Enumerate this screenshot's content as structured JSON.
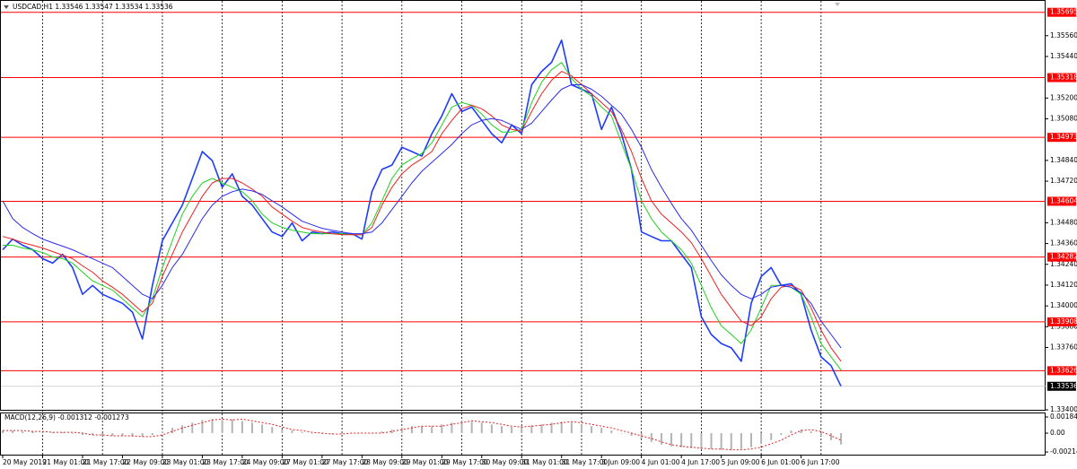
{
  "chart_data": [
    {
      "type": "line",
      "title": "USDCAD,H1  1.33546 1.33547 1.33534 1.33536",
      "categories": [
        "20 May 2019",
        null,
        null,
        null,
        "21 May 01:00",
        null,
        null,
        null,
        "21 May 17:00",
        null,
        null,
        null,
        "22 May 09:00",
        null,
        null,
        null,
        "23 May 01:00",
        null,
        null,
        null,
        "23 May 17:00",
        null,
        null,
        null,
        "24 May 09:00",
        null,
        null,
        null,
        "27 May 01:00",
        null,
        null,
        null,
        "27 May 17:00",
        null,
        null,
        null,
        "28 May 09:00",
        null,
        null,
        null,
        "29 May 01:00",
        null,
        null,
        null,
        "29 May 17:00",
        null,
        null,
        null,
        "30 May 09:00",
        null,
        null,
        null,
        "31 May 01:00",
        null,
        null,
        null,
        "31 May 17:00",
        null,
        null,
        null,
        "3 Jun 09:00",
        null,
        null,
        null,
        "4 Jun 01:00",
        null,
        null,
        null,
        "4 Jun 17:00",
        null,
        null,
        null,
        "5 Jun 09:00",
        null,
        null,
        null,
        "6 Jun 01:00",
        null,
        null,
        null,
        "6 Jun 17:00",
        null,
        null,
        null,
        null
      ],
      "series": [
        {
          "color": "#1e3cff",
          "values": [
            1.34324,
            1.34386,
            1.3435,
            1.34324,
            1.34273,
            1.34247,
            1.34298,
            1.34221,
            1.34067,
            1.34118,
            1.34067,
            1.34041,
            1.34015,
            1.33964,
            1.33809,
            1.34118,
            1.34376,
            1.34479,
            1.34582,
            1.34736,
            1.34891,
            1.34839,
            1.34685,
            1.34762,
            1.34633,
            1.34582,
            1.34504,
            1.34427,
            1.34401,
            1.34479,
            1.34376,
            1.34427,
            1.34417,
            1.34427,
            1.34417,
            1.34417,
            1.34386,
            1.34659,
            1.34788,
            1.34813,
            1.34916,
            1.34891,
            1.34865,
            1.34994,
            1.35097,
            1.35225,
            1.35122,
            1.35148,
            1.35071,
            1.34994,
            1.34942,
            1.35045,
            1.34994,
            1.35277,
            1.35354,
            1.35406,
            1.35534,
            1.35277,
            1.35251,
            1.35225,
            1.35019,
            1.35148,
            1.34994,
            1.34788,
            1.34427,
            1.34401,
            1.34376,
            1.34376,
            1.34298,
            1.34221,
            1.33938,
            1.33835,
            1.33783,
            1.33758,
            1.3368,
            1.34015,
            1.3417,
            1.34221,
            1.34118,
            1.34128,
            1.34067,
            1.33861,
            1.33706,
            1.33655,
            1.33536
          ]
        },
        {
          "color": "#1fd21f",
          "values": [
            1.3435,
            1.3435,
            1.34334,
            1.34324,
            1.34308,
            1.34283,
            1.34273,
            1.34247,
            1.34195,
            1.34144,
            1.34118,
            1.34092,
            1.34041,
            1.33989,
            1.33938,
            1.34041,
            1.34221,
            1.34376,
            1.3453,
            1.34633,
            1.3471,
            1.34736,
            1.3471,
            1.34685,
            1.34659,
            1.34607,
            1.3453,
            1.34479,
            1.34453,
            1.34437,
            1.34427,
            1.34417,
            1.34417,
            1.34417,
            1.34417,
            1.34411,
            1.34411,
            1.34479,
            1.34607,
            1.34736,
            1.34813,
            1.34849,
            1.3488,
            1.34942,
            1.35045,
            1.35148,
            1.35174,
            1.35158,
            1.35107,
            1.35045,
            1.35004,
            1.35004,
            1.35019,
            1.35174,
            1.35292,
            1.35364,
            1.35405,
            1.35313,
            1.35251,
            1.3521,
            1.35148,
            1.35097,
            1.34942,
            1.34788,
            1.34607,
            1.34504,
            1.34427,
            1.34376,
            1.34324,
            1.34247,
            1.34118,
            1.33989,
            1.33886,
            1.33835,
            1.33783,
            1.33861,
            1.33989,
            1.34118,
            1.34118,
            1.34108,
            1.34067,
            1.33938,
            1.33783,
            1.33706,
            1.33629
          ]
        },
        {
          "color": "#f02020",
          "values": [
            1.34401,
            1.34386,
            1.34365,
            1.3435,
            1.34334,
            1.34314,
            1.34293,
            1.34273,
            1.34231,
            1.34195,
            1.34144,
            1.34108,
            1.34067,
            1.34015,
            1.33964,
            1.34015,
            1.3417,
            1.34298,
            1.34427,
            1.3453,
            1.34633,
            1.3471,
            1.34736,
            1.34736,
            1.3471,
            1.34674,
            1.34633,
            1.34571,
            1.3453,
            1.34489,
            1.34453,
            1.34437,
            1.34427,
            1.34417,
            1.34411,
            1.34411,
            1.34411,
            1.34453,
            1.34582,
            1.34685,
            1.34762,
            1.34813,
            1.34849,
            1.34891,
            1.34994,
            1.35071,
            1.35138,
            1.35158,
            1.35138,
            1.35097,
            1.35045,
            1.35019,
            1.35009,
            1.35122,
            1.35225,
            1.35303,
            1.35354,
            1.35328,
            1.35277,
            1.35225,
            1.35174,
            1.35122,
            1.35019,
            1.34891,
            1.34736,
            1.34607,
            1.3453,
            1.34479,
            1.34427,
            1.34365,
            1.34273,
            1.3417,
            1.34067,
            1.33989,
            1.33912,
            1.33886,
            1.33938,
            1.34041,
            1.34108,
            1.34118,
            1.34092,
            1.33989,
            1.33861,
            1.33758,
            1.3368
          ]
        },
        {
          "color": "#2b2bee",
          "values": [
            1.34607,
            1.34504,
            1.34453,
            1.34417,
            1.34386,
            1.34365,
            1.34345,
            1.34324,
            1.34298,
            1.34273,
            1.34247,
            1.34221,
            1.3417,
            1.34118,
            1.34067,
            1.34041,
            1.34118,
            1.34221,
            1.34298,
            1.34401,
            1.34504,
            1.34582,
            1.34633,
            1.34659,
            1.34674,
            1.34664,
            1.34643,
            1.34607,
            1.34571,
            1.3453,
            1.34489,
            1.34468,
            1.34448,
            1.34437,
            1.34427,
            1.34417,
            1.34417,
            1.34427,
            1.34479,
            1.34556,
            1.34633,
            1.3471,
            1.34777,
            1.34829,
            1.3488,
            1.34932,
            1.34994,
            1.35045,
            1.35071,
            1.35081,
            1.35071,
            1.35045,
            1.35019,
            1.35055,
            1.35122,
            1.35189,
            1.35251,
            1.35277,
            1.35277,
            1.35251,
            1.3521,
            1.35158,
            1.35107,
            1.35019,
            1.34916,
            1.34788,
            1.34685,
            1.34592,
            1.34504,
            1.34437,
            1.3435,
            1.34262,
            1.3418,
            1.34118,
            1.34067,
            1.34041,
            1.34067,
            1.34108,
            1.34118,
            1.34108,
            1.34077,
            1.34015,
            1.33912,
            1.33835,
            1.33758
          ]
        }
      ],
      "levels": {
        "color": "#ff0000",
        "values": [
          1.35695,
          1.35318,
          1.34973,
          1.34604,
          1.34282,
          1.33908,
          1.33626
        ]
      },
      "last_price": 1.33536,
      "ylim": [
        1.33395,
        1.35766
      ],
      "yticks": [
        {
          "value": 1.3556,
          "label": "1.35560"
        },
        {
          "value": 1.3544,
          "label": "1.35440"
        },
        {
          "value": 1.352,
          "label": "1.35200"
        },
        {
          "value": 1.3508,
          "label": "1.35080"
        },
        {
          "value": 1.3484,
          "label": "1.34840"
        },
        {
          "value": 1.3472,
          "label": "1.34720"
        },
        {
          "value": 1.3448,
          "label": "1.34480"
        },
        {
          "value": 1.3436,
          "label": "1.34360"
        },
        {
          "value": 1.3424,
          "label": "1.34240"
        },
        {
          "value": 1.3412,
          "label": "1.34120"
        },
        {
          "value": 1.34,
          "label": "1.34000"
        },
        {
          "value": 1.3388,
          "label": "1.33880"
        },
        {
          "value": 1.3376,
          "label": "1.33760"
        },
        {
          "value": 1.334,
          "label": "1.33400"
        }
      ],
      "grid": true
    },
    {
      "type": "macd",
      "title": "MACD(12,26,9) -0.001312 -0.001273",
      "series": [
        {
          "color": "#b4b4b4",
          "values": [
            0.0003,
            0.0003,
            0.0002,
            0.0002,
            0.0001,
            0.0001,
            0.0001,
            0,
            -0.0002,
            -0.0002,
            -0.0003,
            -0.0003,
            -0.0003,
            -0.0004,
            -0.0004,
            -0.0002,
            0.0002,
            0.0006,
            0.0009,
            0.0012,
            0.0015,
            0.0016,
            0.0015,
            0.0016,
            0.0014,
            0.0012,
            0.001,
            0.0007,
            0.0004,
            0.0003,
            0.0001,
            0,
            -0.0001,
            -0.0001,
            0,
            0,
            0,
            0,
            0.0002,
            0.0004,
            0.0006,
            0.0008,
            0.0008,
            0.0008,
            0.001,
            0.0012,
            0.0014,
            0.0013,
            0.0012,
            0.001,
            0.0008,
            0.0007,
            0.0008,
            0.0009,
            0.001,
            0.0012,
            0.0013,
            0.0012,
            0.001,
            0.0008,
            0.0006,
            0.0003,
            0,
            -0.0003,
            -0.0006,
            -0.001,
            -0.0013,
            -0.0015,
            -0.0016,
            -0.0017,
            -0.0018,
            -0.0018,
            -0.0019,
            -0.0019,
            -0.0018,
            -0.0016,
            -0.0012,
            -0.0008,
            -0.0002,
            0.0003,
            0.0004,
            0.0002,
            -0.0003,
            -0.0008,
            -0.0013
          ]
        },
        {
          "color": "#e02020",
          "values": [
            0.0003,
            0.0003,
            0.0003,
            0.0002,
            0.0002,
            0.0001,
            0.0001,
            0.0001,
            0,
            -0.0002,
            -0.0002,
            -0.0003,
            -0.0003,
            -0.0003,
            -0.0004,
            -0.0004,
            -0.0002,
            0.0002,
            0.0006,
            0.0009,
            0.0012,
            0.0015,
            0.0016,
            0.0015,
            0.0016,
            0.0014,
            0.0012,
            0.001,
            0.0007,
            0.0004,
            0.0003,
            0.0001,
            0,
            -0.0001,
            -0.0001,
            0,
            0,
            0,
            0,
            0.0002,
            0.0004,
            0.0006,
            0.0008,
            0.0008,
            0.0008,
            0.001,
            0.0012,
            0.0014,
            0.0013,
            0.0012,
            0.001,
            0.0008,
            0.0007,
            0.0008,
            0.0009,
            0.001,
            0.0012,
            0.0013,
            0.0012,
            0.001,
            0.0008,
            0.0006,
            0.0003,
            0,
            -0.0003,
            -0.0006,
            -0.001,
            -0.0013,
            -0.0015,
            -0.0016,
            -0.0017,
            -0.0018,
            -0.0018,
            -0.0019,
            -0.0019,
            -0.0018,
            -0.0016,
            -0.0012,
            -0.0008,
            -0.0002,
            0.0003,
            0.0004,
            0.0002,
            -0.0003,
            -0.0008
          ]
        }
      ],
      "ylim": [
        -0.00255,
        0.00225
      ],
      "yticks": [
        0.001843,
        {
          "value": 0,
          "label": "0.00"
        },
        -0.002145
      ]
    }
  ]
}
